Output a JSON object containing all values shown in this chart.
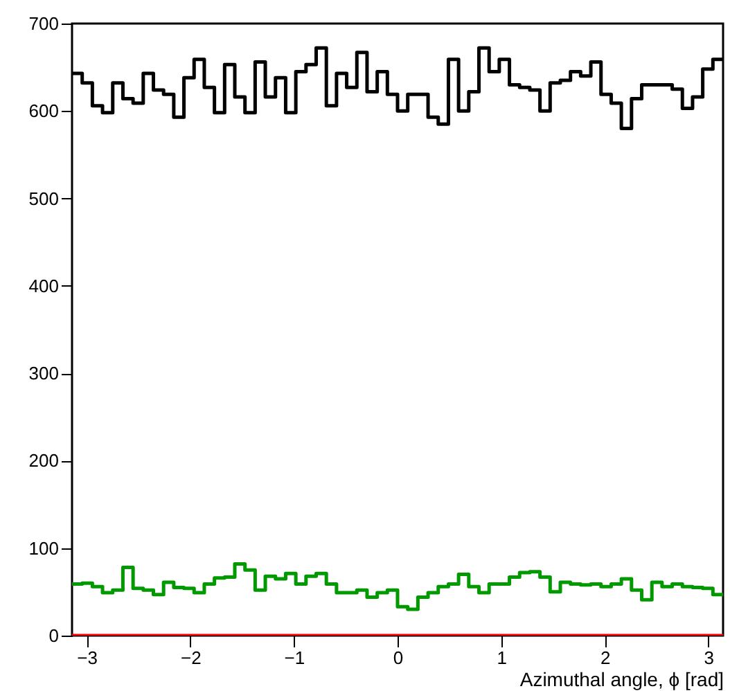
{
  "chart_data": {
    "type": "histogram",
    "xlabel": "Azimuthal angle, ϕ [rad]",
    "bins": [
      -3.1416,
      -3.0434,
      -2.9452,
      -2.8471,
      -2.7489,
      -2.6507,
      -2.5525,
      -2.4544,
      -2.3562,
      -2.258,
      -2.1598,
      -2.0617,
      -1.9635,
      -1.8653,
      -1.7671,
      -1.669,
      -1.5708,
      -1.4726,
      -1.3744,
      -1.2763,
      -1.1781,
      -1.0799,
      -0.9817,
      -0.8836,
      -0.7854,
      -0.6872,
      -0.589,
      -0.4909,
      -0.3927,
      -0.2945,
      -0.1963,
      -0.0982,
      0,
      0.0982,
      0.1963,
      0.2945,
      0.3927,
      0.4909,
      0.589,
      0.6872,
      0.7854,
      0.8836,
      0.9817,
      1.0799,
      1.1781,
      1.2763,
      1.3744,
      1.4726,
      1.5708,
      1.669,
      1.7671,
      1.8653,
      1.9635,
      2.0617,
      2.1598,
      2.258,
      2.3562,
      2.4544,
      2.5525,
      2.6507,
      2.7489,
      2.8471,
      2.9452,
      3.0434,
      3.1416
    ],
    "series": [
      {
        "color": "#000000",
        "values": [
          643,
          632,
          606,
          598,
          632,
          614,
          609,
          643,
          624,
          619,
          593,
          638,
          659,
          627,
          598,
          653,
          616,
          598,
          656,
          616,
          638,
          598,
          645,
          653,
          672,
          606,
          643,
          627,
          667,
          622,
          645,
          619,
          600,
          619,
          619,
          593,
          585,
          659,
          600,
          622,
          672,
          645,
          659,
          630,
          627,
          624,
          600,
          632,
          635,
          645,
          640,
          656,
          619,
          609,
          580,
          614,
          630,
          630,
          630,
          625,
          603,
          616,
          648,
          659
        ]
      },
      {
        "color": "#009900",
        "values": [
          59,
          60,
          56,
          49,
          52,
          78,
          54,
          52,
          47,
          61,
          55,
          54,
          49,
          59,
          66,
          67,
          82,
          75,
          52,
          68,
          65,
          71,
          59,
          68,
          71,
          59,
          49,
          49,
          52,
          44,
          49,
          52,
          33,
          30,
          44,
          49,
          56,
          59,
          70,
          56,
          49,
          59,
          59,
          67,
          72,
          73,
          67,
          50,
          61,
          59,
          58,
          59,
          56,
          59,
          65,
          52,
          41,
          61,
          56,
          59,
          56,
          55,
          54,
          47
        ]
      },
      {
        "color": "#ff0000",
        "values": [
          0,
          0,
          0,
          0,
          0,
          0,
          0,
          0,
          0,
          0,
          0,
          0,
          0,
          0,
          0,
          0,
          0,
          0,
          0,
          0,
          0,
          0,
          0,
          0,
          0,
          0,
          0,
          0,
          0,
          0,
          0,
          0,
          0,
          0,
          0,
          0,
          0,
          0,
          0,
          0,
          0,
          0,
          0,
          0,
          0,
          0,
          0,
          0,
          0,
          0,
          0,
          0,
          0,
          0,
          0,
          0,
          0,
          0,
          0,
          0,
          0,
          0,
          0,
          0
        ]
      }
    ],
    "xlim": [
      -3.1416,
      3.1416
    ],
    "xticks": [
      -3,
      -2,
      -1,
      0,
      1,
      2,
      3
    ],
    "ylim": [
      0,
      700
    ],
    "yticks": [
      0,
      100,
      200,
      300,
      400,
      500,
      600,
      700
    ],
    "marker": "none"
  }
}
